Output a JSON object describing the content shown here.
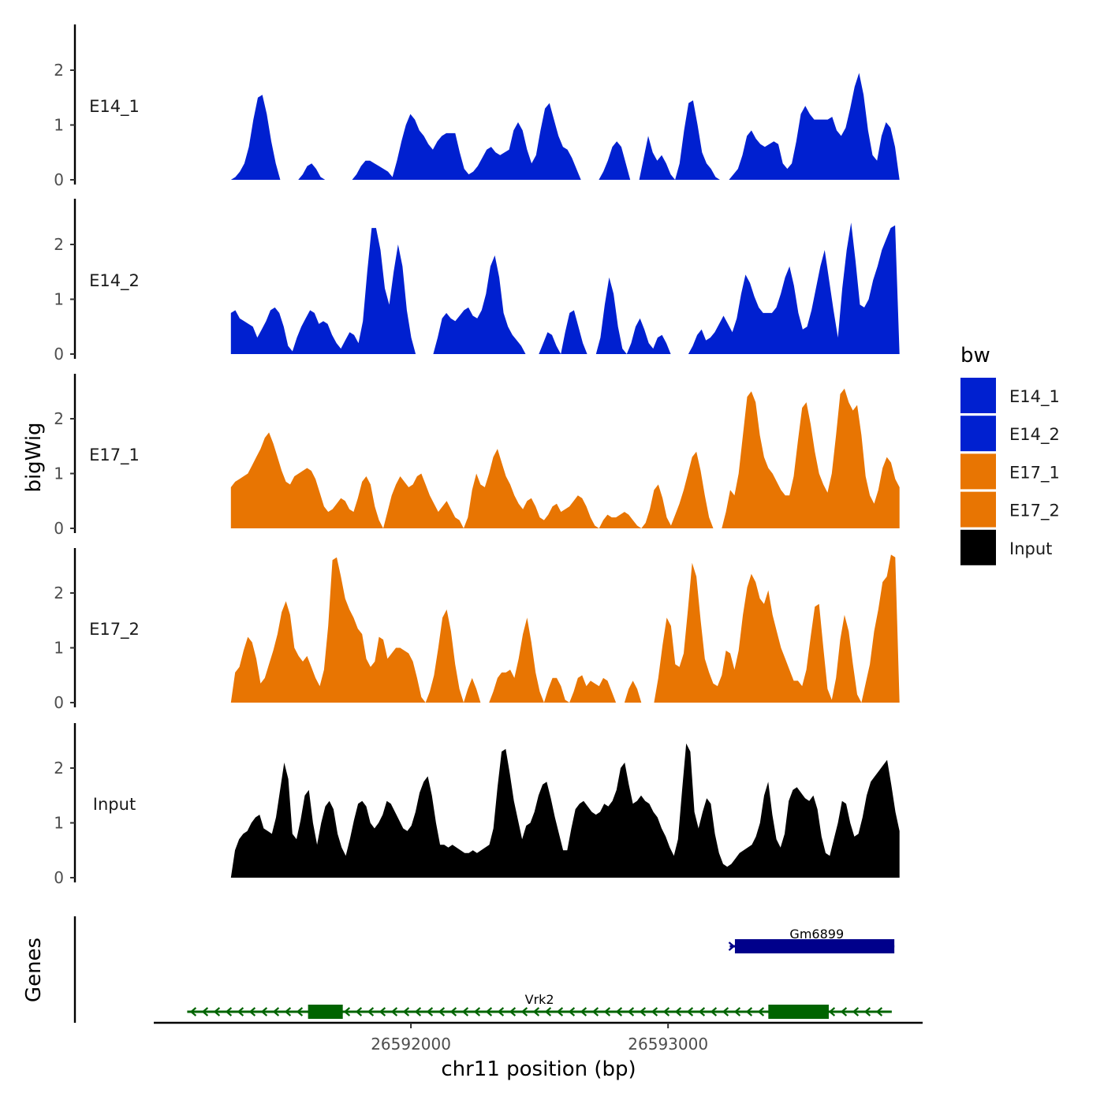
{
  "chart_data": {
    "type": "area",
    "title": "",
    "xlabel": "chr11 position (bp)",
    "ylabel": "bigWig",
    "genes_label": "Genes",
    "x_range": [
      26591300,
      26593900
    ],
    "xlim": [
      26591000,
      26593990
    ],
    "x_ticks": [
      26592000,
      26593000
    ],
    "x_tick_labels": [
      "26592000",
      "26593000"
    ],
    "ylim": [
      0,
      2.8
    ],
    "y_ticks": [
      0,
      1,
      2
    ],
    "y_tick_labels": [
      "0",
      "1",
      "2"
    ],
    "legend": {
      "title": "bw",
      "entries": [
        {
          "label": "E14_1",
          "color": "#0020d0"
        },
        {
          "label": "E14_2",
          "color": "#0020d0"
        },
        {
          "label": "E17_1",
          "color": "#e87502"
        },
        {
          "label": "E17_2",
          "color": "#e87502"
        },
        {
          "label": "Input",
          "color": "#000000"
        }
      ]
    },
    "series": [
      {
        "name": "E14_1",
        "color": "#0020d0",
        "values": [
          0,
          0.05,
          0.15,
          0.3,
          0.6,
          1.1,
          1.5,
          1.55,
          1.2,
          0.7,
          0.3,
          0,
          null,
          null,
          null,
          0,
          0.1,
          0.25,
          0.3,
          0.2,
          0.05,
          0,
          null,
          null,
          null,
          null,
          null,
          0,
          0.1,
          0.25,
          0.35,
          0.35,
          0.3,
          0.25,
          0.2,
          0.15,
          0.05,
          0.35,
          0.7,
          1.0,
          1.2,
          1.1,
          0.9,
          0.8,
          0.65,
          0.55,
          0.7,
          0.8,
          0.85,
          0.85,
          0.85,
          0.5,
          0.2,
          0.1,
          0.15,
          0.25,
          0.4,
          0.55,
          0.6,
          0.5,
          0.45,
          0.5,
          0.55,
          0.9,
          1.05,
          0.9,
          0.55,
          0.3,
          0.45,
          0.9,
          1.3,
          1.4,
          1.1,
          0.8,
          0.6,
          0.55,
          0.4,
          0.2,
          0,
          null,
          null,
          null,
          0,
          0.15,
          0.35,
          0.6,
          0.7,
          0.6,
          0.3,
          0,
          null,
          0,
          0.4,
          0.8,
          0.5,
          0.35,
          0.45,
          0.3,
          0.1,
          0,
          0.3,
          0.9,
          1.4,
          1.45,
          1.0,
          0.5,
          0.3,
          0.2,
          0.05,
          0,
          null,
          0,
          0.1,
          0.2,
          0.45,
          0.8,
          0.9,
          0.75,
          0.65,
          0.6,
          0.65,
          0.7,
          0.65,
          0.3,
          0.2,
          0.3,
          0.7,
          1.2,
          1.35,
          1.2,
          1.1,
          1.1,
          1.1,
          1.1,
          1.15,
          0.9,
          0.8,
          0.95,
          1.3,
          1.7,
          1.95,
          1.55,
          0.9,
          0.45,
          0.35,
          0.8,
          1.05,
          0.95,
          0.6,
          0
        ]
      },
      {
        "name": "E14_2",
        "color": "#0020d0",
        "values": [
          0.75,
          0.8,
          0.65,
          0.6,
          0.55,
          0.5,
          0.3,
          0.45,
          0.6,
          0.8,
          0.85,
          0.75,
          0.5,
          0.15,
          0.05,
          0.3,
          0.5,
          0.65,
          0.8,
          0.75,
          0.55,
          0.6,
          0.55,
          0.35,
          0.2,
          0.1,
          0.25,
          0.4,
          0.35,
          0.2,
          0.6,
          1.5,
          2.3,
          2.3,
          1.9,
          1.2,
          0.9,
          1.5,
          2.0,
          1.6,
          0.8,
          0.3,
          0,
          null,
          null,
          null,
          0,
          0.3,
          0.65,
          0.75,
          0.65,
          0.6,
          0.7,
          0.8,
          0.85,
          0.7,
          0.65,
          0.8,
          1.1,
          1.6,
          1.8,
          1.4,
          0.75,
          0.5,
          0.35,
          0.25,
          0.15,
          0,
          null,
          null,
          0,
          0.2,
          0.4,
          0.35,
          0.15,
          0,
          0.4,
          0.75,
          0.8,
          0.5,
          0.2,
          0,
          null,
          0,
          0.3,
          0.9,
          1.4,
          1.1,
          0.5,
          0.1,
          0,
          0.2,
          0.5,
          0.65,
          0.45,
          0.2,
          0.1,
          0.3,
          0.35,
          0.2,
          0,
          null,
          null,
          null,
          0,
          0.15,
          0.35,
          0.45,
          0.25,
          0.3,
          0.4,
          0.55,
          0.7,
          0.55,
          0.4,
          0.65,
          1.1,
          1.45,
          1.3,
          1.05,
          0.85,
          0.75,
          0.75,
          0.75,
          0.85,
          1.1,
          1.4,
          1.6,
          1.25,
          0.75,
          0.45,
          0.5,
          0.8,
          1.2,
          1.6,
          1.9,
          1.35,
          0.8,
          0.3,
          1.2,
          1.9,
          2.4,
          1.7,
          0.9,
          0.85,
          1.0,
          1.35,
          1.6,
          1.9,
          2.1,
          2.3,
          2.35,
          0
        ]
      },
      {
        "name": "E17_1",
        "color": "#e87502",
        "values": [
          0.75,
          0.85,
          0.9,
          0.95,
          1.0,
          1.15,
          1.3,
          1.45,
          1.65,
          1.75,
          1.55,
          1.3,
          1.05,
          0.85,
          0.8,
          0.95,
          1.0,
          1.05,
          1.1,
          1.05,
          0.9,
          0.65,
          0.4,
          0.3,
          0.35,
          0.45,
          0.55,
          0.5,
          0.35,
          0.3,
          0.55,
          0.85,
          0.95,
          0.8,
          0.4,
          0.15,
          0,
          0.3,
          0.6,
          0.8,
          0.95,
          0.85,
          0.75,
          0.8,
          0.95,
          1.0,
          0.8,
          0.6,
          0.45,
          0.3,
          0.4,
          0.5,
          0.35,
          0.2,
          0.15,
          0,
          0.2,
          0.7,
          1.0,
          0.8,
          0.75,
          1.0,
          1.3,
          1.45,
          1.2,
          0.95,
          0.8,
          0.6,
          0.45,
          0.35,
          0.5,
          0.55,
          0.4,
          0.2,
          0.15,
          0.25,
          0.4,
          0.45,
          0.3,
          0.35,
          0.4,
          0.5,
          0.6,
          0.55,
          0.4,
          0.2,
          0.05,
          0,
          0.15,
          0.25,
          0.2,
          0.2,
          0.25,
          0.3,
          0.25,
          0.15,
          0.05,
          0,
          0.1,
          0.35,
          0.7,
          0.8,
          0.55,
          0.2,
          0.05,
          0.25,
          0.45,
          0.7,
          1.0,
          1.3,
          1.4,
          1.05,
          0.6,
          0.2,
          0,
          null,
          0,
          0.3,
          0.7,
          0.6,
          1.0,
          1.7,
          2.4,
          2.5,
          2.3,
          1.7,
          1.3,
          1.1,
          1.0,
          0.85,
          0.7,
          0.6,
          0.6,
          0.95,
          1.6,
          2.2,
          2.3,
          1.9,
          1.4,
          1.0,
          0.8,
          0.65,
          1.0,
          1.7,
          2.45,
          2.55,
          2.3,
          2.15,
          2.25,
          1.7,
          0.95,
          0.6,
          0.45,
          0.7,
          1.1,
          1.3,
          1.2,
          0.9,
          0.75
        ]
      },
      {
        "name": "E17_2",
        "color": "#e87502",
        "values": [
          0,
          0.55,
          0.65,
          0.95,
          1.2,
          1.1,
          0.8,
          0.35,
          0.45,
          0.7,
          0.95,
          1.25,
          1.65,
          1.85,
          1.6,
          1.0,
          0.85,
          0.75,
          0.85,
          0.65,
          0.45,
          0.3,
          0.6,
          1.4,
          2.6,
          2.65,
          2.3,
          1.9,
          1.7,
          1.55,
          1.35,
          1.25,
          0.8,
          0.65,
          0.75,
          1.2,
          1.15,
          0.8,
          0.9,
          1.0,
          1.0,
          0.95,
          0.9,
          0.75,
          0.45,
          0.1,
          0,
          0.2,
          0.5,
          1.0,
          1.55,
          1.7,
          1.3,
          0.7,
          0.25,
          0,
          0.25,
          0.45,
          0.25,
          0,
          null,
          0,
          0.2,
          0.45,
          0.55,
          0.55,
          0.6,
          0.45,
          0.8,
          1.25,
          1.55,
          1.1,
          0.55,
          0.2,
          0,
          0.25,
          0.45,
          0.45,
          0.3,
          0.05,
          0,
          0.2,
          0.45,
          0.5,
          0.3,
          0.4,
          0.35,
          0.3,
          0.45,
          0.4,
          0.2,
          0,
          null,
          0,
          0.25,
          0.4,
          0.25,
          0,
          null,
          null,
          0,
          0.45,
          1.05,
          1.55,
          1.4,
          0.7,
          0.65,
          0.9,
          1.7,
          2.55,
          2.3,
          1.5,
          0.8,
          0.55,
          0.35,
          0.3,
          0.5,
          0.95,
          0.9,
          0.6,
          0.95,
          1.6,
          2.1,
          2.35,
          2.2,
          1.9,
          1.8,
          2.05,
          1.6,
          1.3,
          1.0,
          0.8,
          0.6,
          0.4,
          0.4,
          0.3,
          0.6,
          1.2,
          1.75,
          1.8,
          1.0,
          0.25,
          0.05,
          0.45,
          1.15,
          1.6,
          1.3,
          0.7,
          0.15,
          0,
          0.35,
          0.7,
          1.3,
          1.7,
          2.2,
          2.3,
          2.7,
          2.65,
          0
        ]
      },
      {
        "name": "Input",
        "color": "#000000",
        "values": [
          0,
          0.5,
          0.7,
          0.8,
          0.85,
          1.0,
          1.1,
          1.15,
          0.9,
          0.85,
          0.8,
          1.1,
          1.6,
          2.1,
          1.8,
          0.8,
          0.7,
          1.05,
          1.5,
          1.6,
          1.0,
          0.6,
          1.0,
          1.3,
          1.4,
          1.25,
          0.8,
          0.55,
          0.4,
          0.7,
          1.05,
          1.35,
          1.4,
          1.3,
          1.0,
          0.9,
          1.0,
          1.15,
          1.4,
          1.35,
          1.2,
          1.05,
          0.9,
          0.85,
          0.95,
          1.2,
          1.55,
          1.75,
          1.85,
          1.5,
          1.0,
          0.6,
          0.6,
          0.55,
          0.6,
          0.55,
          0.5,
          0.45,
          0.45,
          0.5,
          0.45,
          0.5,
          0.55,
          0.6,
          0.9,
          1.65,
          2.3,
          2.35,
          1.9,
          1.4,
          1.05,
          0.7,
          0.95,
          1.0,
          1.2,
          1.5,
          1.7,
          1.75,
          1.45,
          1.1,
          0.8,
          0.5,
          0.5,
          0.9,
          1.25,
          1.35,
          1.4,
          1.3,
          1.2,
          1.15,
          1.2,
          1.35,
          1.3,
          1.4,
          1.6,
          2.0,
          2.1,
          1.7,
          1.35,
          1.4,
          1.5,
          1.4,
          1.35,
          1.2,
          1.1,
          0.9,
          0.75,
          0.55,
          0.4,
          0.7,
          1.6,
          2.45,
          2.3,
          1.2,
          0.9,
          1.2,
          1.45,
          1.35,
          0.8,
          0.45,
          0.25,
          0.2,
          0.25,
          0.35,
          0.45,
          0.5,
          0.55,
          0.6,
          0.75,
          1.0,
          1.5,
          1.75,
          1.15,
          0.7,
          0.55,
          0.8,
          1.4,
          1.6,
          1.65,
          1.55,
          1.45,
          1.4,
          1.5,
          1.25,
          0.75,
          0.45,
          0.4,
          0.7,
          1.0,
          1.4,
          1.35,
          1.0,
          0.75,
          0.8,
          1.1,
          1.5,
          1.75,
          1.85,
          1.95,
          2.05,
          2.15,
          1.7,
          1.2,
          0.85
        ]
      }
    ],
    "gene_track": [
      {
        "name": "Vrk2",
        "color": "#006400",
        "strand": "-",
        "start": 26591130,
        "end": 26593870,
        "exons": [
          [
            26591600,
            26591735
          ],
          [
            26593390,
            26593625
          ]
        ]
      },
      {
        "name": "Gm6899",
        "color": "#00008b",
        "strand": "+",
        "start": 26593240,
        "end": 26593880,
        "exons": [
          [
            26593260,
            26593880
          ]
        ]
      }
    ]
  }
}
